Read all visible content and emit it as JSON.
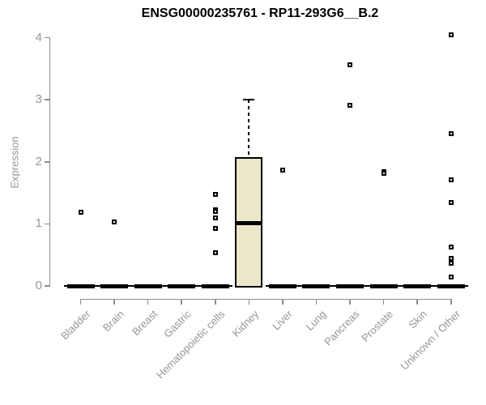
{
  "header": {
    "title": "ENSG00000235761 - RP11-293G6__B.2"
  },
  "chart_data": {
    "type": "boxplot",
    "title": "ENSG00000235761 - RP11-293G6__B.2",
    "xlabel": "",
    "ylabel": "Expression",
    "ylim": [
      0,
      4.1
    ],
    "yticks": [
      0,
      1,
      2,
      3,
      4
    ],
    "grid": false,
    "legend": "none",
    "colors": {
      "box_fill": "#ece7cb",
      "box_border": "#000000",
      "median": "#000000",
      "marker": "#000000",
      "axis": "#8c8c8c",
      "labels": "#969696",
      "title": "#000000"
    },
    "categories": [
      {
        "label": "Bladder",
        "box": {
          "min": 0,
          "q1": 0,
          "median": 0,
          "q3": 0,
          "max": 0
        },
        "points": [
          1.19
        ]
      },
      {
        "label": "Brain",
        "box": {
          "min": 0,
          "q1": 0,
          "median": 0,
          "q3": 0,
          "max": 0
        },
        "points": [
          1.03
        ]
      },
      {
        "label": "Breast",
        "box": {
          "min": 0,
          "q1": 0,
          "median": 0,
          "q3": 0,
          "max": 0
        },
        "points": []
      },
      {
        "label": "Gastric",
        "box": {
          "min": 0,
          "q1": 0,
          "median": 0,
          "q3": 0,
          "max": 0
        },
        "points": []
      },
      {
        "label": "Hematopoietic cells",
        "box": {
          "min": 0,
          "q1": 0,
          "median": 0,
          "q3": 0,
          "max": 0
        },
        "points": [
          1.47,
          1.23,
          1.2,
          1.1,
          0.93,
          0.53
        ]
      },
      {
        "label": "Kidney",
        "box": {
          "min": 0,
          "q1": 0,
          "median": 1.01,
          "q3": 2.07,
          "max": 3.0
        },
        "points": []
      },
      {
        "label": "Liver",
        "box": {
          "min": 0,
          "q1": 0,
          "median": 0,
          "q3": 0,
          "max": 0
        },
        "points": [
          1.87
        ]
      },
      {
        "label": "Lung",
        "box": {
          "min": 0,
          "q1": 0,
          "median": 0,
          "q3": 0,
          "max": 0
        },
        "points": []
      },
      {
        "label": "Pancreas",
        "box": {
          "min": 0,
          "q1": 0,
          "median": 0,
          "q3": 0,
          "max": 0
        },
        "points": [
          3.57,
          2.91
        ]
      },
      {
        "label": "Prostate",
        "box": {
          "min": 0,
          "q1": 0,
          "median": 0,
          "q3": 0,
          "max": 0
        },
        "points": [
          1.84,
          1.82
        ]
      },
      {
        "label": "Skin",
        "box": {
          "min": 0,
          "q1": 0,
          "median": 0,
          "q3": 0,
          "max": 0
        },
        "points": []
      },
      {
        "label": "Unknown / Other",
        "box": {
          "min": 0,
          "q1": 0,
          "median": 0,
          "q3": 0,
          "max": 0
        },
        "points": [
          4.05,
          2.45,
          1.71,
          1.35,
          0.63,
          0.45,
          0.37,
          0.15
        ]
      }
    ]
  }
}
